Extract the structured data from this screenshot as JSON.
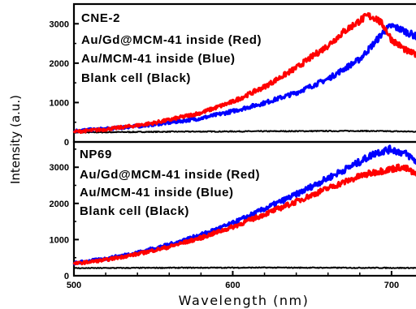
{
  "chart_data": {
    "type": "line",
    "xlabel": "Wavelength (nm)",
    "ylabel": "Intensity (a.u.)",
    "xlim": [
      500,
      720
    ],
    "x_ticks": [
      500,
      600,
      700
    ],
    "panels": [
      {
        "name": "top",
        "ylim": [
          0,
          3500
        ],
        "y_ticks": [
          0,
          1000,
          2000,
          3000
        ],
        "annotations": [
          "CNE-2",
          "Au/Gd@MCM-41 inside (Red)",
          "Au/MCM-41 inside (Blue)",
          "Blank cell (Black)"
        ],
        "series": [
          {
            "name": "Au/Gd@MCM-41 inside (Red)",
            "color": "#ff0000",
            "x": [
              500,
              520,
              540,
              550,
              560,
              580,
              600,
              620,
              640,
              660,
              670,
              680,
              685,
              690,
              695,
              700,
              710,
              720
            ],
            "y": [
              260,
              320,
              420,
              480,
              560,
              740,
              1020,
              1400,
              1880,
              2450,
              2800,
              3080,
              3200,
              3150,
              2950,
              2600,
              2300,
              2150
            ]
          },
          {
            "name": "Au/MCM-41 inside (Blue)",
            "color": "#0000ff",
            "x": [
              500,
              520,
              540,
              560,
              580,
              600,
              620,
              640,
              660,
              680,
              690,
              695,
              700,
              705,
              710,
              720
            ],
            "y": [
              280,
              330,
              400,
              490,
              600,
              780,
              990,
              1250,
              1600,
              2100,
              2550,
              2800,
              2950,
              2870,
              2780,
              2600
            ]
          },
          {
            "name": "Blank cell (Black)",
            "color": "#000000",
            "x": [
              500,
              560,
              620,
              680,
              720
            ],
            "y": [
              240,
              260,
              270,
              280,
              260
            ]
          }
        ]
      },
      {
        "name": "bottom",
        "ylim": [
          0,
          3700
        ],
        "y_ticks": [
          0,
          1000,
          2000,
          3000
        ],
        "annotations": [
          "NP69",
          "Au/Gd@MCM-41 inside (Red)",
          "Au/MCM-41 inside (Blue)",
          "Blank cell (Black)"
        ],
        "series": [
          {
            "name": "Au/Gd@MCM-41 inside (Red)",
            "color": "#ff0000",
            "x": [
              500,
              520,
              540,
              560,
              580,
              600,
              620,
              640,
              660,
              680,
              690,
              700,
              705,
              710,
              720
            ],
            "y": [
              330,
              440,
              600,
              800,
              1050,
              1350,
              1700,
              2050,
              2420,
              2750,
              2870,
              2950,
              3000,
              2950,
              2650
            ]
          },
          {
            "name": "Au/MCM-41 inside (Blue)",
            "color": "#0000ff",
            "x": [
              500,
              520,
              540,
              560,
              580,
              600,
              620,
              640,
              660,
              680,
              690,
              700,
              710,
              720
            ],
            "y": [
              350,
              470,
              640,
              860,
              1130,
              1450,
              1850,
              2250,
              2700,
              3150,
              3400,
              3500,
              3350,
              3000
            ]
          },
          {
            "name": "Blank cell (Black)",
            "color": "#000000",
            "x": [
              500,
              560,
              620,
              680,
              720
            ],
            "y": [
              210,
              220,
              225,
              220,
              215
            ]
          }
        ]
      }
    ]
  }
}
